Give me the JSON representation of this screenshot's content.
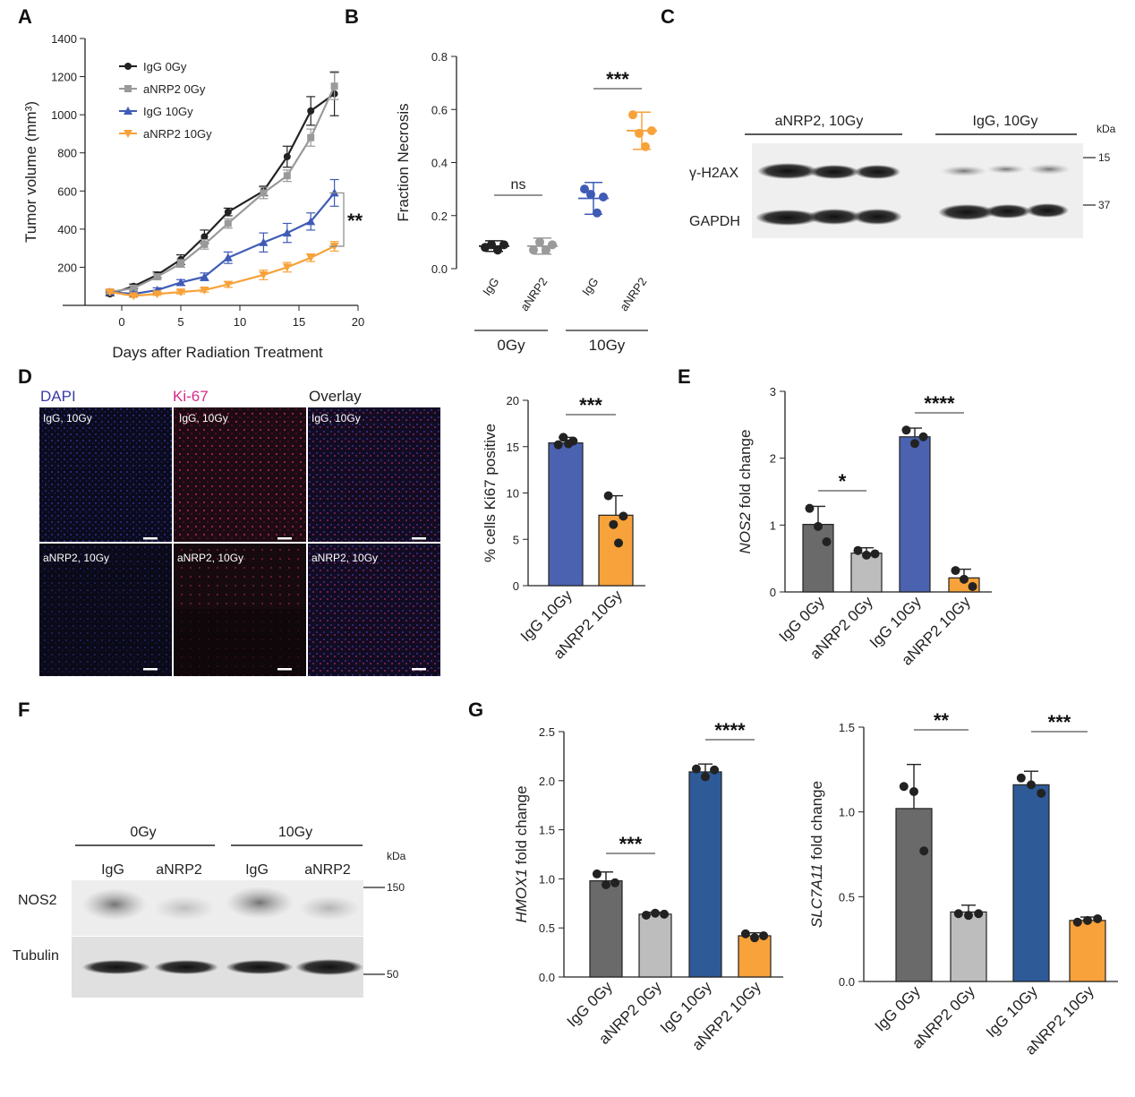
{
  "panel_letters": {
    "A": "A",
    "B": "B",
    "C": "C",
    "D": "D",
    "E": "E",
    "F": "F",
    "G": "G"
  },
  "colors": {
    "black": "#222222",
    "grey": "#9a9a9a",
    "blue": "#3f5bb5",
    "orange": "#f7a23a",
    "darkgrey": "#6a6a6a",
    "lightgrey": "#bdbdbd",
    "bar_blue": "#4a62b0",
    "bar_blue_g": "#2e5a98"
  },
  "chart_data": [
    {
      "id": "A",
      "type": "line",
      "xlabel": "Days after Radiation Treatment",
      "ylabel": "Tumor volume (mm³)",
      "xlim": [
        -5,
        20
      ],
      "ylim": [
        0,
        1400
      ],
      "xticks": [
        0,
        5,
        10,
        15,
        20
      ],
      "yticks": [
        200,
        400,
        600,
        800,
        1000,
        1200,
        1400
      ],
      "legend_position": "top-left",
      "significance": "**",
      "series": [
        {
          "name": "IgG 0Gy",
          "color": "#222222",
          "marker": "circle",
          "x": [
            -1,
            1,
            3,
            5,
            7,
            9,
            12,
            14,
            16,
            18
          ],
          "y": [
            60,
            100,
            160,
            240,
            360,
            490,
            600,
            780,
            1020,
            1110
          ],
          "err": [
            10,
            12,
            15,
            25,
            35,
            20,
            25,
            55,
            75,
            115
          ]
        },
        {
          "name": "aNRP2 0Gy",
          "color": "#9a9a9a",
          "marker": "square",
          "x": [
            -1,
            1,
            3,
            5,
            7,
            9,
            12,
            14,
            16,
            18
          ],
          "y": [
            70,
            90,
            150,
            220,
            320,
            430,
            590,
            680,
            880,
            1150
          ],
          "err": [
            10,
            12,
            15,
            20,
            25,
            25,
            30,
            30,
            45,
            70
          ]
        },
        {
          "name": "IgG 10Gy",
          "color": "#3f5bb5",
          "marker": "triangle-up",
          "x": [
            -1,
            1,
            3,
            5,
            7,
            9,
            12,
            14,
            16,
            18
          ],
          "y": [
            70,
            60,
            80,
            120,
            150,
            250,
            330,
            380,
            440,
            590
          ],
          "err": [
            10,
            10,
            12,
            15,
            20,
            30,
            50,
            50,
            45,
            70
          ]
        },
        {
          "name": "aNRP2 10Gy",
          "color": "#f7a23a",
          "marker": "triangle-down",
          "x": [
            -1,
            1,
            3,
            5,
            7,
            9,
            12,
            14,
            16,
            18
          ],
          "y": [
            70,
            50,
            60,
            70,
            80,
            110,
            160,
            200,
            250,
            310
          ],
          "err": [
            8,
            8,
            8,
            10,
            10,
            15,
            25,
            25,
            20,
            25
          ]
        }
      ]
    },
    {
      "id": "B",
      "type": "scatter",
      "ylabel": "Fraction Necrosis",
      "ylim": [
        0,
        0.8
      ],
      "yticks": [
        0.0,
        0.2,
        0.4,
        0.6,
        0.8
      ],
      "categories": [
        "IgG",
        "aNRP2",
        "IgG",
        "aNRP2"
      ],
      "groups": [
        "0Gy",
        "10Gy"
      ],
      "colors": [
        "#222222",
        "#9a9a9a",
        "#3f5bb5",
        "#f7a23a"
      ],
      "means": [
        0.085,
        0.085,
        0.265,
        0.52
      ],
      "sd": [
        0.02,
        0.03,
        0.06,
        0.07
      ],
      "points": [
        [
          0.08,
          0.09,
          0.07,
          0.09
        ],
        [
          0.07,
          0.1,
          0.07,
          0.09
        ],
        [
          0.3,
          0.28,
          0.21,
          0.27
        ],
        [
          0.58,
          0.51,
          0.46,
          0.52
        ]
      ],
      "annotations": [
        {
          "pair": [
            0,
            1
          ],
          "text": "ns"
        },
        {
          "pair": [
            2,
            3
          ],
          "text": "***"
        }
      ]
    },
    {
      "id": "D",
      "type": "bar",
      "ylabel": "% cells Ki67 positive",
      "ylim": [
        0,
        20
      ],
      "yticks": [
        0,
        5,
        10,
        15,
        20
      ],
      "categories": [
        "IgG 10Gy",
        "aNRP2 10Gy"
      ],
      "colors": [
        "#4a62b0",
        "#f7a23a"
      ],
      "values": [
        15.4,
        7.6
      ],
      "sd": [
        0.6,
        2.1
      ],
      "points": [
        [
          15.2,
          16.0,
          15.3,
          15.6
        ],
        [
          9.7,
          6.6,
          4.6,
          7.5
        ]
      ],
      "annotations": [
        {
          "pair": [
            0,
            1
          ],
          "text": "***"
        }
      ]
    },
    {
      "id": "E",
      "type": "bar",
      "ylabel_gene": "NOS2",
      "ylabel_rest": " fold change",
      "ylim": [
        0,
        3
      ],
      "yticks": [
        0,
        1,
        2,
        3
      ],
      "categories": [
        "IgG 0Gy",
        "aNRP2 0Gy",
        "IgG 10Gy",
        "aNRP2 10Gy"
      ],
      "colors": [
        "#6a6a6a",
        "#bdbdbd",
        "#4a62b0",
        "#f7a23a"
      ],
      "values": [
        1.01,
        0.58,
        2.32,
        0.21
      ],
      "sd": [
        0.27,
        0.08,
        0.13,
        0.13
      ],
      "points": [
        [
          1.25,
          0.98,
          0.75
        ],
        [
          0.62,
          0.55,
          0.57
        ],
        [
          2.42,
          2.22,
          2.32
        ],
        [
          0.32,
          0.19,
          0.08
        ]
      ],
      "annotations": [
        {
          "pair": [
            0,
            1
          ],
          "text": "*"
        },
        {
          "pair": [
            2,
            3
          ],
          "text": "****"
        }
      ]
    },
    {
      "id": "G1",
      "type": "bar",
      "ylabel_gene": "HMOX1",
      "ylabel_rest": " fold change",
      "ylim": [
        0,
        2.5
      ],
      "yticks": [
        0.0,
        0.5,
        1.0,
        1.5,
        2.0,
        2.5
      ],
      "categories": [
        "IgG 0Gy",
        "aNRP2 0Gy",
        "IgG 10Gy",
        "aNRP2 10Gy"
      ],
      "colors": [
        "#6a6a6a",
        "#bdbdbd",
        "#2e5a98",
        "#f7a23a"
      ],
      "values": [
        0.98,
        0.64,
        2.09,
        0.42
      ],
      "sd": [
        0.09,
        0.02,
        0.08,
        0.03
      ],
      "points": [
        [
          1.05,
          0.94,
          0.96
        ],
        [
          0.63,
          0.65,
          0.64
        ],
        [
          2.12,
          2.04,
          2.11
        ],
        [
          0.44,
          0.4,
          0.42
        ]
      ],
      "annotations": [
        {
          "pair": [
            0,
            1
          ],
          "text": "***"
        },
        {
          "pair": [
            2,
            3
          ],
          "text": "****"
        }
      ]
    },
    {
      "id": "G2",
      "type": "bar",
      "ylabel_gene": "SLC7A11",
      "ylabel_rest": " fold change",
      "ylim": [
        0,
        1.5
      ],
      "yticks": [
        0.0,
        0.5,
        1.0,
        1.5
      ],
      "categories": [
        "IgG 0Gy",
        "aNRP2 0Gy",
        "IgG 10Gy",
        "aNRP2 10Gy"
      ],
      "colors": [
        "#6a6a6a",
        "#bdbdbd",
        "#2e5a98",
        "#f7a23a"
      ],
      "values": [
        1.02,
        0.41,
        1.16,
        0.36
      ],
      "sd": [
        0.26,
        0.04,
        0.08,
        0.02
      ],
      "points": [
        [
          1.15,
          1.12,
          0.77
        ],
        [
          0.4,
          0.39,
          0.4
        ],
        [
          1.2,
          1.16,
          1.11
        ],
        [
          0.35,
          0.36,
          0.37
        ]
      ],
      "annotations": [
        {
          "pair": [
            0,
            1
          ],
          "text": "**"
        },
        {
          "pair": [
            2,
            3
          ],
          "text": "***"
        }
      ]
    }
  ],
  "blot_C": {
    "groups": [
      "aNRP2, 10Gy",
      "IgG, 10Gy"
    ],
    "rows": [
      "γ-H2AX",
      "GAPDH"
    ],
    "kda_label": "kDa",
    "markers": [
      "15",
      "37"
    ]
  },
  "micrographs_D": {
    "channels": [
      "DAPI",
      "Ki-67",
      "Overlay"
    ],
    "channel_colors": [
      "#3b3ba8",
      "#d62a8a",
      "#222222"
    ],
    "row_labels": [
      "IgG, 10Gy",
      "aNRP2, 10Gy"
    ]
  },
  "blot_F": {
    "groups": [
      "0Gy",
      "10Gy"
    ],
    "lanes": [
      "IgG",
      "aNRP2",
      "IgG",
      "aNRP2"
    ],
    "rows": [
      "NOS2",
      "Tubulin"
    ],
    "kda_label": "kDa",
    "markers": [
      "150",
      "50"
    ]
  }
}
